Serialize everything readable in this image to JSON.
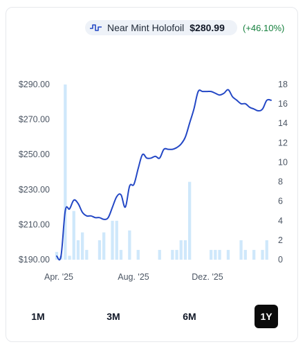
{
  "legend": {
    "series_name": "Near Mint Holofoil",
    "price": "$280.99",
    "change": "(+46.10%)"
  },
  "range_buttons": [
    {
      "label": "1M",
      "active": false
    },
    {
      "label": "3M",
      "active": false
    },
    {
      "label": "6M",
      "active": false
    },
    {
      "label": "1Y",
      "active": true
    }
  ],
  "colors": {
    "line": "#2347c5",
    "bars": "#cfe8fb",
    "change": "#15803d"
  },
  "chart_data": {
    "type": "line",
    "x_ticks": [
      "Apr. '25",
      "Aug. '25",
      "Dez. '25"
    ],
    "y_left": {
      "ticks": [
        "$190.00",
        "$210.00",
        "$230.00",
        "$250.00",
        "$270.00",
        "$290.00"
      ],
      "lim": [
        190,
        290
      ]
    },
    "y_right": {
      "ticks": [
        "0",
        "2",
        "4",
        "6",
        "8",
        "10",
        "12",
        "14",
        "16",
        "18"
      ],
      "lim": [
        0,
        18
      ]
    },
    "series": [
      {
        "name": "Near Mint Holofoil",
        "axis": "left",
        "type": "line",
        "values": [
          192,
          192,
          218,
          219,
          224,
          222,
          217,
          215,
          215,
          214,
          214,
          213,
          214,
          220,
          226,
          227,
          220,
          232,
          233,
          242,
          250,
          248,
          248,
          249,
          248,
          253,
          253,
          253,
          254,
          256,
          260,
          268,
          276,
          286,
          286,
          286,
          286,
          285,
          284,
          285,
          287,
          283,
          281,
          279,
          279,
          277,
          276,
          275,
          276,
          281,
          281
        ]
      },
      {
        "name": "",
        "axis": "right",
        "type": "bar",
        "values": [
          0.8,
          0.4,
          18,
          0.4,
          5,
          2,
          2.8,
          1,
          0,
          0,
          2,
          2.8,
          0,
          4,
          4,
          1,
          0,
          3,
          0,
          1,
          0,
          0,
          0,
          0,
          1,
          0,
          0,
          1,
          1,
          2,
          2,
          8,
          0,
          0,
          0,
          0,
          1,
          1,
          1,
          0,
          1,
          0,
          0,
          2,
          1,
          0,
          1,
          0,
          1,
          2,
          0
        ]
      }
    ]
  }
}
